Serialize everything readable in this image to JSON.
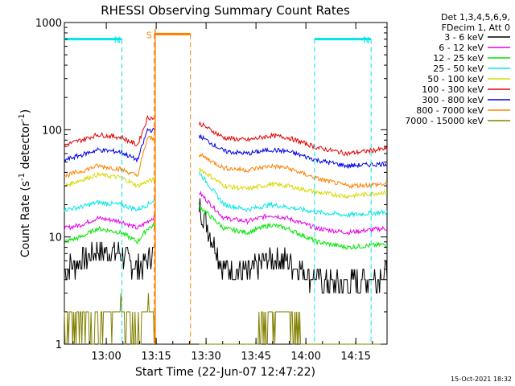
{
  "chart_data": {
    "type": "line",
    "title": "RHESSI Observing Summary Count Rates",
    "xlabel": "Start Time (22-Jun-07 12:47:22)",
    "ylabel_main": "Count Rate (s",
    "ylabel_sup1": "-1",
    "ylabel_mid": " detector",
    "ylabel_sup2": "-1",
    "ylabel_end": ")",
    "y_scale": "log",
    "ylim": [
      1,
      1000
    ],
    "xlim_minutes": [
      0,
      97
    ],
    "x_ticks": [
      {
        "label": "13:00",
        "minute": 12.6
      },
      {
        "label": "13:15",
        "minute": 27.6
      },
      {
        "label": "13:30",
        "minute": 42.6
      },
      {
        "label": "13:45",
        "minute": 57.6
      },
      {
        "label": "14:00",
        "minute": 72.6
      },
      {
        "label": "14:15",
        "minute": 87.6
      }
    ],
    "y_ticks": [
      {
        "label": "1",
        "value": 1
      },
      {
        "label": "10",
        "value": 10
      },
      {
        "label": "100",
        "value": 100
      },
      {
        "label": "1000",
        "value": 1000
      }
    ],
    "legend_header": [
      "Det 1,3,4,5,6,9,",
      "FDecim 1, Att 0"
    ],
    "legend_position": "right",
    "series": [
      {
        "name": "3 - 6 keV",
        "color": "#000000",
        "minutes": [
          0,
          5,
          10,
          17,
          22,
          25,
          40,
          48,
          55,
          62,
          67,
          76,
          85,
          96
        ],
        "values": [
          5,
          6,
          7.5,
          7,
          5,
          6,
          22,
          5,
          4.5,
          6.5,
          6,
          4,
          3.5,
          4.5
        ]
      },
      {
        "name": "6 - 12 keV",
        "color": "#e600e6",
        "minutes": [
          0,
          5,
          10,
          17,
          22,
          25,
          40,
          48,
          55,
          62,
          67,
          76,
          85,
          96
        ],
        "values": [
          12,
          13,
          15,
          14,
          12,
          14,
          27,
          15,
          14,
          16,
          15,
          12,
          11,
          12
        ]
      },
      {
        "name": "12 - 25 keV",
        "color": "#00e600",
        "minutes": [
          0,
          5,
          10,
          17,
          22,
          25,
          40,
          48,
          55,
          62,
          67,
          76,
          85,
          96
        ],
        "values": [
          9,
          10,
          12,
          11,
          9,
          12,
          20,
          12,
          11,
          13,
          12,
          9,
          8,
          8.5
        ]
      },
      {
        "name": "25 - 50 keV",
        "color": "#00e6e6",
        "minutes": [
          0,
          5,
          10,
          17,
          22,
          25,
          40,
          48,
          55,
          62,
          67,
          76,
          85,
          96
        ],
        "values": [
          18,
          19,
          21,
          20,
          18,
          20,
          42,
          20,
          18,
          20,
          19,
          17,
          16,
          17
        ]
      },
      {
        "name": "50 - 100 keV",
        "color": "#d9d900",
        "minutes": [
          0,
          5,
          10,
          17,
          22,
          25,
          40,
          48,
          55,
          62,
          67,
          76,
          85,
          96
        ],
        "values": [
          30,
          34,
          38,
          36,
          30,
          33,
          45,
          30,
          28,
          31,
          30,
          26,
          24,
          26
        ]
      },
      {
        "name": "100 - 300 keV",
        "color": "#e60000",
        "minutes": [
          0,
          5,
          10,
          17,
          22,
          25,
          40,
          48,
          55,
          62,
          67,
          76,
          85,
          96
        ],
        "values": [
          72,
          80,
          90,
          85,
          72,
          130,
          118,
          84,
          80,
          88,
          85,
          68,
          60,
          66
        ]
      },
      {
        "name": "300 - 800 keV",
        "color": "#0000e6",
        "minutes": [
          0,
          5,
          10,
          17,
          22,
          25,
          40,
          48,
          55,
          62,
          67,
          76,
          85,
          96
        ],
        "values": [
          52,
          58,
          65,
          62,
          52,
          100,
          90,
          63,
          60,
          65,
          63,
          52,
          46,
          48
        ]
      },
      {
        "name": "800 - 7000 keV",
        "color": "#ff8000",
        "minutes": [
          0,
          5,
          10,
          17,
          22,
          25,
          40,
          48,
          55,
          62,
          67,
          76,
          85,
          96
        ],
        "values": [
          37,
          41,
          46,
          43,
          37,
          85,
          60,
          44,
          42,
          46,
          44,
          35,
          30,
          31
        ]
      },
      {
        "name": "7000 - 15000 keV",
        "color": "#808000",
        "minutes": [
          0,
          5,
          10,
          17,
          22,
          25,
          40,
          48,
          55,
          62,
          67,
          76,
          85,
          96
        ],
        "values": [
          1.5,
          1.8,
          1.5,
          2,
          1.5,
          2,
          1,
          1,
          1,
          1.5,
          2,
          1,
          1,
          1
        ]
      }
    ],
    "annotations": [
      {
        "text": "N",
        "color": "#00e6e6",
        "start_minute": 0,
        "end_minute": 17.3,
        "value": 700
      },
      {
        "text": "N",
        "color": "#00e6e6",
        "start_minute": 75.2,
        "end_minute": 92.2,
        "value": 700
      },
      {
        "text": "S",
        "color": "#ff8000",
        "start_minute": 27.0,
        "end_minute": 37.9,
        "value": 780
      }
    ],
    "footer_timestamp": "15-Oct-2021 18:32"
  }
}
